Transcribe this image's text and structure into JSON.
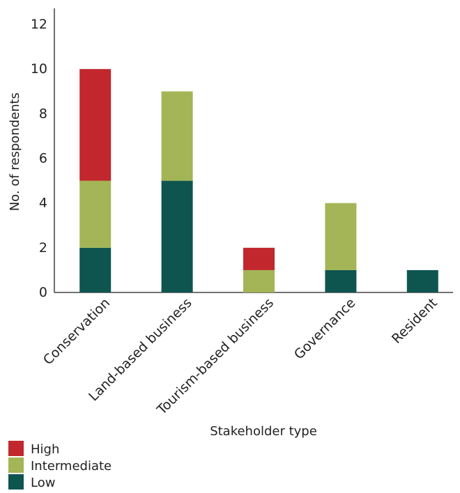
{
  "chart_data": {
    "type": "bar",
    "stacked": true,
    "categories": [
      "Conservation",
      "Land-based business",
      "Tourism-based business",
      "Governance",
      "Resident"
    ],
    "series": [
      {
        "name": "Low",
        "color": "#0e5550",
        "values": [
          2,
          5,
          0,
          1,
          1
        ]
      },
      {
        "name": "Intermediate",
        "color": "#a3b556",
        "values": [
          3,
          4,
          1,
          3,
          0
        ]
      },
      {
        "name": "High",
        "color": "#c1272d",
        "values": [
          5,
          0,
          1,
          0,
          0
        ]
      }
    ],
    "legend_order": [
      "High",
      "Intermediate",
      "Low"
    ],
    "legend_position": "bottom-left",
    "xlabel": "Stakeholder type",
    "ylabel": "No. of respondents",
    "yticks": [
      0,
      2,
      4,
      6,
      8,
      10,
      12
    ],
    "ylim": [
      0,
      12
    ],
    "grid": false
  }
}
